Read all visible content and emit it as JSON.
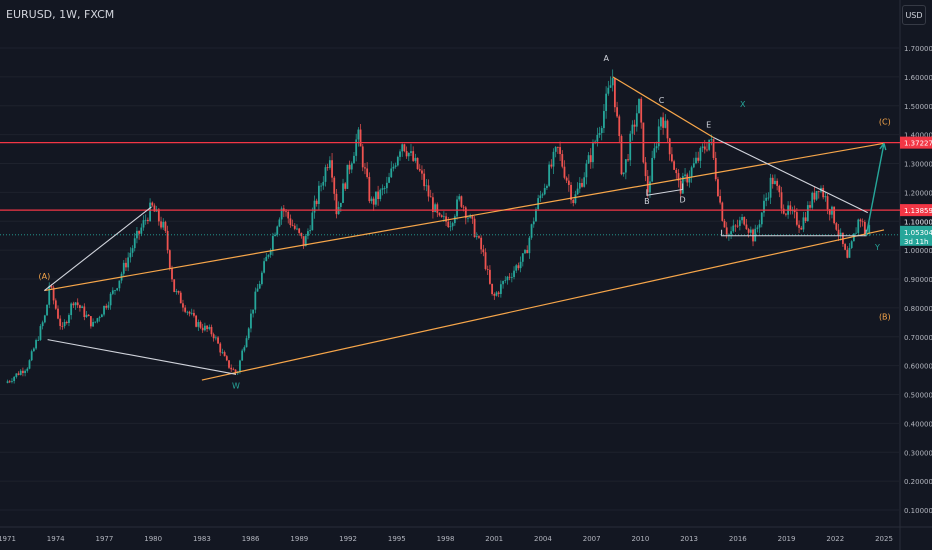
{
  "header": {
    "symbol": "EURUSD, 1W, FXCM",
    "currency": "USD"
  },
  "colors": {
    "background": "#131722",
    "up": "#26a69a",
    "down": "#ef5350",
    "grid": "#1e222d",
    "red_level": "#f23645",
    "orange_line": "#f7a64a",
    "white_line": "#d1d4dc",
    "teal_label": "#26a69a",
    "text": "#b2b5be"
  },
  "chart_data": {
    "type": "candlestick",
    "x_ticks": [
      "1971",
      "1974",
      "1977",
      "1980",
      "1983",
      "1986",
      "1989",
      "1992",
      "1995",
      "1998",
      "2001",
      "2004",
      "2007",
      "2010",
      "2013",
      "2016",
      "2019",
      "2022",
      "2025"
    ],
    "y_ticks": [
      "1.70000",
      "1.60000",
      "1.50000",
      "1.40000",
      "1.30000",
      "1.20000",
      "1.10000",
      "1.00000",
      "0.90000",
      "0.80000",
      "0.70000",
      "0.60000",
      "0.50000",
      "0.40000",
      "0.30000",
      "0.20000",
      "0.10000"
    ],
    "ylim": [
      0.05,
      1.75
    ],
    "price_path": [
      [
        1970.9,
        0.54
      ],
      [
        1972.3,
        0.6
      ],
      [
        1973.4,
        0.78
      ],
      [
        1973.6,
        0.88
      ],
      [
        1974.4,
        0.72
      ],
      [
        1975.1,
        0.83
      ],
      [
        1976.3,
        0.74
      ],
      [
        1977.6,
        0.86
      ],
      [
        1978.8,
        1.02
      ],
      [
        1979.9,
        1.15
      ],
      [
        1980.7,
        1.07
      ],
      [
        1981.3,
        0.86
      ],
      [
        1982.6,
        0.75
      ],
      [
        1983.7,
        0.71
      ],
      [
        1984.5,
        0.61
      ],
      [
        1985.15,
        0.57
      ],
      [
        1986.3,
        0.84
      ],
      [
        1987.9,
        1.15
      ],
      [
        1989.3,
        1.02
      ],
      [
        1990.9,
        1.34
      ],
      [
        1991.3,
        1.13
      ],
      [
        1992.6,
        1.4
      ],
      [
        1993.4,
        1.16
      ],
      [
        1994.4,
        1.22
      ],
      [
        1995.3,
        1.38
      ],
      [
        1996.4,
        1.27
      ],
      [
        1997.6,
        1.1
      ],
      [
        1998.3,
        1.1
      ],
      [
        1998.9,
        1.18
      ],
      [
        1999.7,
        1.08
      ],
      [
        2000.4,
        0.97
      ],
      [
        2000.9,
        0.83
      ],
      [
        2001.6,
        0.89
      ],
      [
        2002.9,
        0.98
      ],
      [
        2003.6,
        1.15
      ],
      [
        2004.9,
        1.35
      ],
      [
        2005.9,
        1.17
      ],
      [
        2006.9,
        1.32
      ],
      [
        2007.6,
        1.45
      ],
      [
        2008.3,
        1.6
      ],
      [
        2008.9,
        1.25
      ],
      [
        2009.9,
        1.51
      ],
      [
        2010.4,
        1.19
      ],
      [
        2011.3,
        1.48
      ],
      [
        2012.4,
        1.21
      ],
      [
        2013.6,
        1.32
      ],
      [
        2014.3,
        1.39
      ],
      [
        2015.0,
        1.13
      ],
      [
        2015.4,
        1.05
      ],
      [
        2016.4,
        1.11
      ],
      [
        2017.0,
        1.04
      ],
      [
        2018.1,
        1.25
      ],
      [
        2018.9,
        1.14
      ],
      [
        2019.9,
        1.09
      ],
      [
        2021.0,
        1.23
      ],
      [
        2022.0,
        1.1
      ],
      [
        2022.75,
        0.96
      ],
      [
        2023.5,
        1.12
      ],
      [
        2023.9,
        1.05
      ],
      [
        2024.1,
        1.08
      ]
    ],
    "current_price": "1.05304",
    "countdown": "3d 11h",
    "price_labels": [
      {
        "text": "1.37227",
        "value": 1.37227,
        "color": "#f23645"
      },
      {
        "text": "1.13859",
        "value": 1.13859,
        "color": "#f23645"
      },
      {
        "text": "1.10000",
        "value": 1.1,
        "color": "none"
      }
    ],
    "horizontal_levels": [
      1.37227,
      1.13859
    ],
    "orange_lines": [
      {
        "from": [
          1973.3,
          0.86
        ],
        "to": [
          2025.0,
          1.37
        ]
      },
      {
        "from": [
          1983.0,
          0.55
        ],
        "to": [
          2025.0,
          1.07
        ]
      },
      {
        "from": [
          2008.3,
          1.6
        ],
        "to": [
          2014.5,
          1.39
        ]
      }
    ],
    "white_lines": [
      {
        "from": [
          1973.3,
          0.86
        ],
        "to": [
          1979.9,
          1.15
        ]
      },
      {
        "from": [
          1973.5,
          0.69
        ],
        "to": [
          1985.1,
          0.57
        ]
      },
      {
        "from": [
          2014.5,
          1.39
        ],
        "to": [
          2024.0,
          1.13
        ]
      }
    ],
    "boxes": [
      {
        "from": [
          2010.4,
          1.19
        ],
        "to": [
          2012.6,
          1.21
        ]
      },
      {
        "from": [
          2015.0,
          1.05
        ],
        "to": [
          2023.9,
          1.05
        ]
      }
    ],
    "projection": {
      "from": [
        2023.9,
        1.05
      ],
      "to": [
        2025.0,
        1.37
      ],
      "color": "#26a69a"
    },
    "annotations": [
      {
        "text": "(A)",
        "x": 1973.3,
        "y": 0.9,
        "color": "#f7a64a"
      },
      {
        "text": "W",
        "x": 1985.1,
        "y": 0.52,
        "color": "#26a69a"
      },
      {
        "text": "A",
        "x": 2007.9,
        "y": 1.655,
        "color": "#d1d4dc"
      },
      {
        "text": "C",
        "x": 2011.3,
        "y": 1.51,
        "color": "#d1d4dc"
      },
      {
        "text": "X",
        "x": 2016.3,
        "y": 1.495,
        "color": "#26a69a"
      },
      {
        "text": "E",
        "x": 2014.2,
        "y": 1.425,
        "color": "#d1d4dc"
      },
      {
        "text": "B",
        "x": 2010.4,
        "y": 1.16,
        "color": "#d1d4dc"
      },
      {
        "text": "D",
        "x": 2012.6,
        "y": 1.165,
        "color": "#d1d4dc"
      },
      {
        "text": "(C)",
        "x": 2025.05,
        "y": 1.435,
        "color": "#f7a64a"
      },
      {
        "text": "Y",
        "x": 2024.6,
        "y": 1.0,
        "color": "#26a69a"
      },
      {
        "text": "(B)",
        "x": 2025.05,
        "y": 0.76,
        "color": "#f7a64a"
      }
    ]
  }
}
